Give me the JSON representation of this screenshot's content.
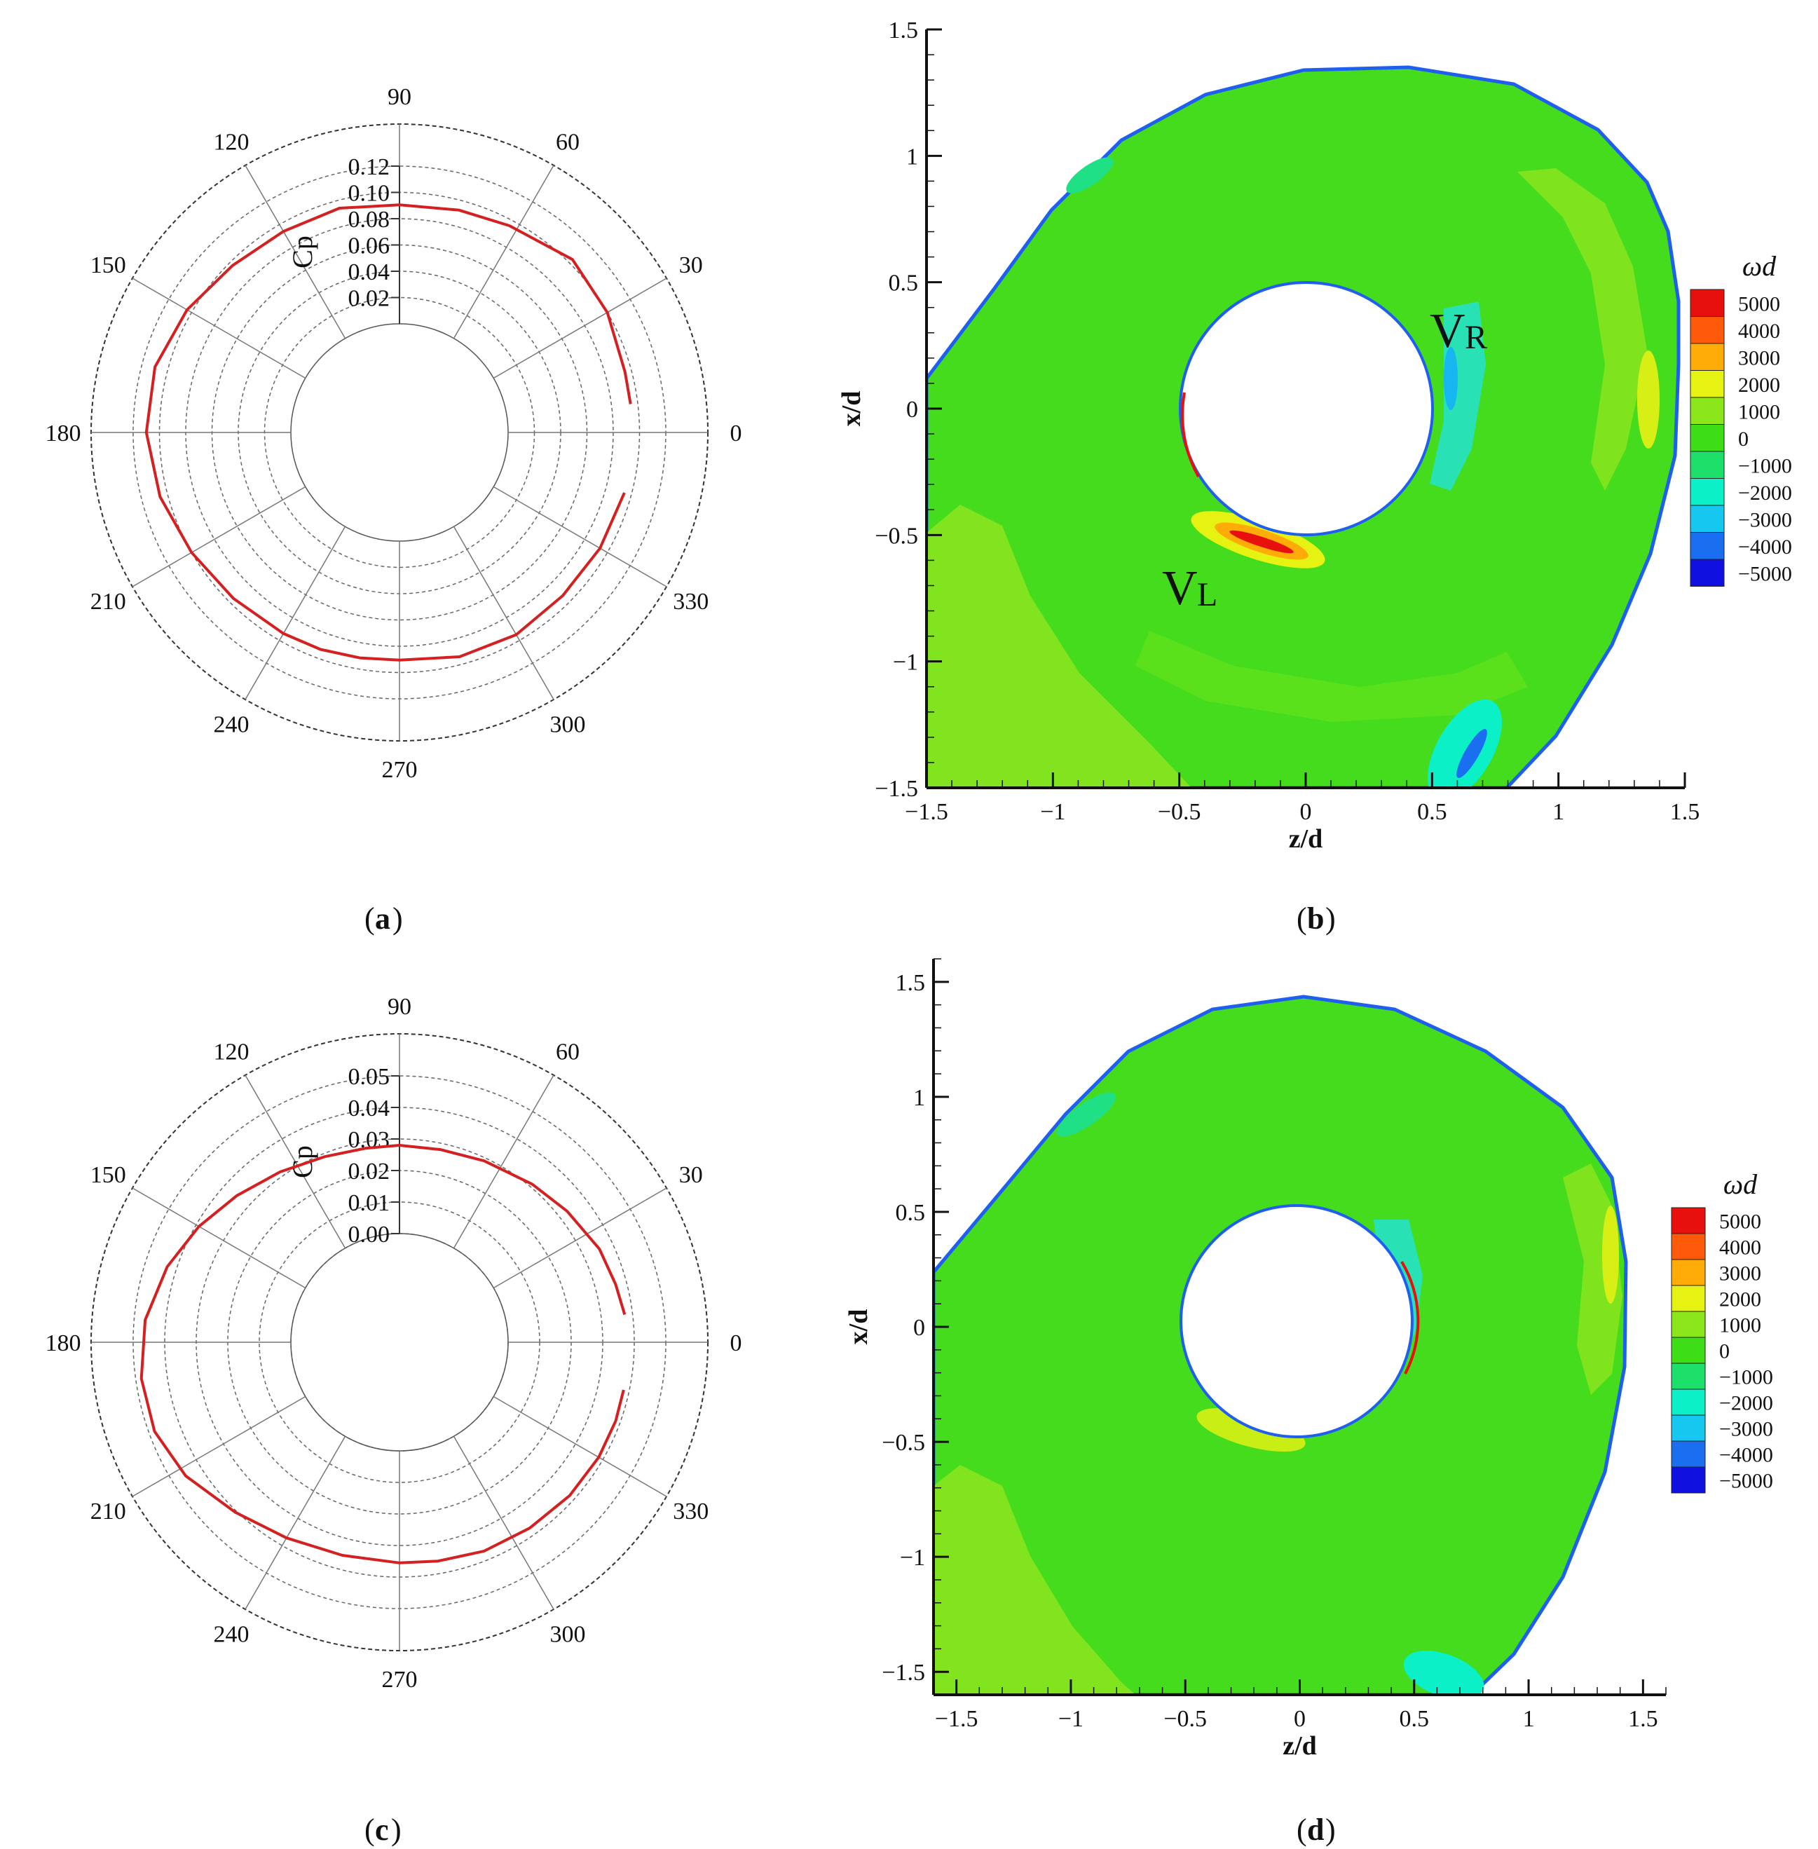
{
  "panels": [
    {
      "id": "a",
      "caption_letter": "a"
    },
    {
      "id": "b",
      "caption_letter": "b"
    },
    {
      "id": "c",
      "caption_letter": "c"
    },
    {
      "id": "d",
      "caption_letter": "d"
    }
  ],
  "chart_data": [
    {
      "panel": "a",
      "type": "line",
      "coordinate_system": "polar",
      "rlabel": "Cp",
      "angle_ticks": [
        "0",
        "30",
        "60",
        "90",
        "120",
        "150",
        "180",
        "210",
        "240",
        "270",
        "300",
        "330"
      ],
      "r_ticks": [
        "0.02",
        "0.04",
        "0.06",
        "0.08",
        "0.10",
        "0.12"
      ],
      "r_range": [
        0.0,
        0.12
      ],
      "grid": true,
      "series": [
        {
          "color": "#d42020",
          "theta_deg": [
            345,
            330,
            315,
            300,
            285,
            270,
            260,
            250,
            240,
            225,
            210,
            195,
            180,
            165,
            150,
            135,
            120,
            105,
            90,
            75,
            62,
            45,
            30,
            15,
            7
          ],
          "r": [
            0.0945,
            0.0935,
            0.093,
            0.095,
            0.094,
            0.0905,
            0.0915,
            0.093,
            0.094,
            0.096,
            0.1,
            0.106,
            0.11,
            0.11,
            0.104,
            0.097,
            0.094,
            0.094,
            0.0905,
            0.0925,
            0.0955,
            0.1035,
            0.1,
            0.095,
            0.0945
          ]
        }
      ]
    },
    {
      "panel": "b",
      "type": "heatmap",
      "xlabel": "z/d",
      "ylabel": "x/d",
      "xticks": [
        "−1.5",
        "−1",
        "−0.5",
        "0",
        "0.5",
        "1",
        "1.5"
      ],
      "yticks": [
        "−1.5",
        "−1",
        "−0.5",
        "0",
        "0.5",
        "1",
        "1.5"
      ],
      "xlim": [
        -1.5,
        1.5
      ],
      "ylim": [
        -1.5,
        1.5
      ],
      "legend_title": "ωd",
      "legend_levels": [
        "5000",
        "4000",
        "3000",
        "2000",
        "1000",
        "0",
        "−1000",
        "−2000",
        "−3000",
        "−4000",
        "−5000"
      ],
      "legend_colors": [
        "#e8100c",
        "#ff5a0a",
        "#ffab08",
        "#e6f211",
        "#8ce61c",
        "#3ede17",
        "#1de06b",
        "#0cf0c8",
        "#16c8f0",
        "#1a6ef0",
        "#1010e0"
      ],
      "annotations": [
        {
          "main": "V",
          "sub": "R"
        },
        {
          "main": "V",
          "sub": "L"
        }
      ]
    },
    {
      "panel": "c",
      "type": "line",
      "coordinate_system": "polar",
      "rlabel": "Cp",
      "angle_ticks": [
        "0",
        "30",
        "60",
        "90",
        "120",
        "150",
        "180",
        "210",
        "240",
        "270",
        "300",
        "330"
      ],
      "r_ticks": [
        "0.00",
        "0.01",
        "0.02",
        "0.03",
        "0.04",
        "0.05"
      ],
      "r_range": [
        0.0,
        0.05
      ],
      "grid": true,
      "series": [
        {
          "color": "#d42020",
          "theta_deg": [
            348,
            340,
            330,
            318,
            305,
            292,
            280,
            270,
            255,
            240,
            226,
            212,
            200,
            188,
            175,
            162,
            150,
            138,
            125,
            112,
            100,
            90,
            78,
            65,
            50,
            38,
            25,
            15,
            7
          ],
          "r": [
            0.0382,
            0.0385,
            0.0385,
            0.0382,
            0.0375,
            0.037,
            0.036,
            0.0355,
            0.0355,
            0.0372,
            0.0405,
            0.0455,
            0.0482,
            0.0482,
            0.0465,
            0.043,
            0.039,
            0.035,
            0.0315,
            0.029,
            0.028,
            0.028,
            0.028,
            0.029,
            0.031,
            0.033,
            0.0355,
            0.0365,
            0.0375
          ]
        }
      ]
    },
    {
      "panel": "d",
      "type": "heatmap",
      "xlabel": "z/d",
      "ylabel": "x/d",
      "xticks": [
        "−1.5",
        "−1",
        "−0.5",
        "0",
        "0.5",
        "1",
        "1.5"
      ],
      "yticks": [
        "−1.5",
        "−1",
        "−0.5",
        "0",
        "0.5",
        "1",
        "1.5"
      ],
      "xlim": [
        -1.6,
        1.6
      ],
      "ylim": [
        -1.6,
        1.6
      ],
      "legend_title": "ωd",
      "legend_levels": [
        "5000",
        "4000",
        "3000",
        "2000",
        "1000",
        "0",
        "−1000",
        "−2000",
        "−3000",
        "−4000",
        "−5000"
      ],
      "legend_colors": [
        "#e8100c",
        "#ff5a0a",
        "#ffab08",
        "#e6f211",
        "#8ce61c",
        "#3ede17",
        "#1de06b",
        "#0cf0c8",
        "#16c8f0",
        "#1a6ef0",
        "#1010e0"
      ],
      "annotations": []
    }
  ]
}
